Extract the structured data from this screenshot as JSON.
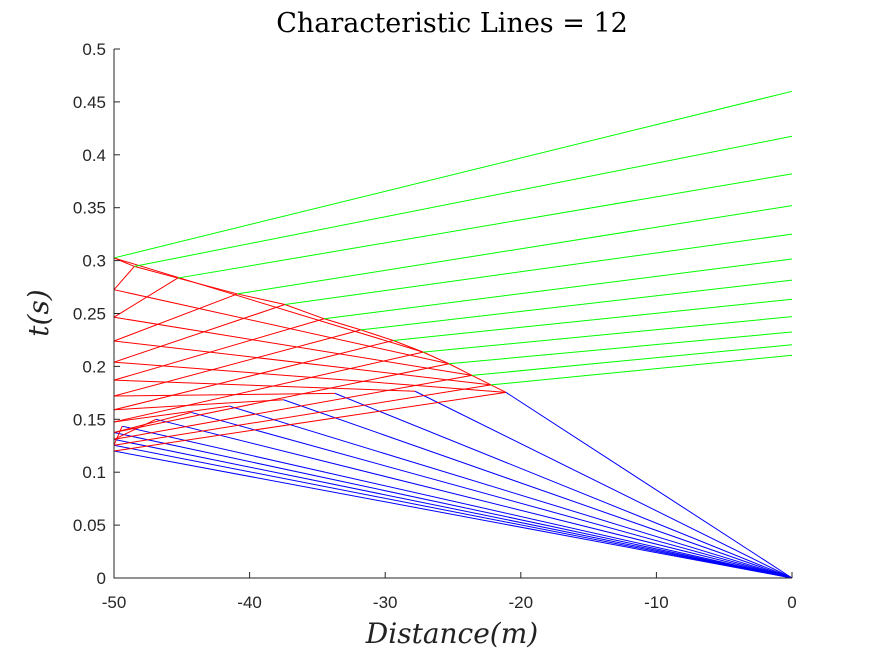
{
  "chart_data": {
    "type": "line",
    "title": "Characteristic Lines = 12",
    "xlabel": "Distance(m)",
    "ylabel": "t(s)",
    "xlim": [
      -50,
      0
    ],
    "ylim": [
      0,
      0.5
    ],
    "xticks": [
      -50,
      -40,
      -30,
      -20,
      -10,
      0
    ],
    "yticks": [
      0,
      0.05,
      0.1,
      0.15,
      0.2,
      0.25,
      0.3,
      0.35,
      0.4,
      0.45,
      0.5
    ],
    "xtick_labels": [
      "-50",
      "-40",
      "-30",
      "-20",
      "-10",
      "0"
    ],
    "ytick_labels": [
      "0",
      "0.05",
      "0.1",
      "0.15",
      "0.2",
      "0.25",
      "0.3",
      "0.35",
      "0.4",
      "0.45",
      "0.5"
    ],
    "grid": false,
    "colors": {
      "blue": "#0000ff",
      "red": "#ff0000",
      "green": "#00ff00",
      "axis": "#262626"
    },
    "series": [
      {
        "color": "blue",
        "points": [
          [
            0,
            0
          ],
          [
            -50,
            0.12
          ]
        ]
      },
      {
        "color": "blue",
        "points": [
          [
            0,
            0
          ],
          [
            -50,
            0.1255
          ]
        ]
      },
      {
        "color": "blue",
        "points": [
          [
            0,
            0
          ],
          [
            -50,
            0.131
          ]
        ]
      },
      {
        "color": "blue",
        "points": [
          [
            0,
            0
          ],
          [
            -50,
            0.1375
          ]
        ]
      },
      {
        "color": "blue",
        "points": [
          [
            0,
            0
          ],
          [
            -49.4,
            0.1435
          ]
        ]
      },
      {
        "color": "blue",
        "points": [
          [
            0,
            0
          ],
          [
            -46.9,
            0.15
          ]
        ]
      },
      {
        "color": "blue",
        "points": [
          [
            0,
            0
          ],
          [
            -44.3,
            0.1565
          ]
        ]
      },
      {
        "color": "blue",
        "points": [
          [
            0,
            0
          ],
          [
            -41.5,
            0.1625
          ]
        ]
      },
      {
        "color": "blue",
        "points": [
          [
            0,
            0
          ],
          [
            -37.5,
            0.1685
          ]
        ]
      },
      {
        "color": "blue",
        "points": [
          [
            0,
            0
          ],
          [
            -33.7,
            0.1745
          ]
        ]
      },
      {
        "color": "blue",
        "points": [
          [
            0,
            0
          ],
          [
            -27.8,
            0.1765
          ]
        ]
      },
      {
        "color": "blue",
        "points": [
          [
            0,
            0
          ],
          [
            -21.1,
            0.1755
          ]
        ]
      },
      {
        "color": "red",
        "points": [
          [
            -50,
            0.12
          ],
          [
            -21.1,
            0.1755
          ]
        ]
      },
      {
        "color": "red",
        "points": [
          [
            -50,
            0.1255
          ],
          [
            -22.2,
            0.1825
          ]
        ]
      },
      {
        "color": "red",
        "points": [
          [
            -50,
            0.131
          ],
          [
            -23.6,
            0.1915
          ]
        ]
      },
      {
        "color": "red",
        "points": [
          [
            -50,
            0.1375
          ],
          [
            -25.3,
            0.2025
          ]
        ]
      },
      {
        "color": "red",
        "points": [
          [
            -50,
            0.1475
          ],
          [
            -27.2,
            0.2135
          ]
        ]
      },
      {
        "color": "red",
        "points": [
          [
            -50,
            0.159
          ],
          [
            -29.4,
            0.2245
          ]
        ]
      },
      {
        "color": "red",
        "points": [
          [
            -50,
            0.172
          ],
          [
            -31.8,
            0.2345
          ]
        ]
      },
      {
        "color": "red",
        "points": [
          [
            -50,
            0.187
          ],
          [
            -34.5,
            0.245
          ]
        ]
      },
      {
        "color": "red",
        "points": [
          [
            -50,
            0.204
          ],
          [
            -37.4,
            0.2585
          ]
        ]
      },
      {
        "color": "red",
        "points": [
          [
            -50,
            0.224
          ],
          [
            -40.9,
            0.2685
          ]
        ]
      },
      {
        "color": "red",
        "points": [
          [
            -50,
            0.2465
          ],
          [
            -45.3,
            0.2835
          ]
        ]
      },
      {
        "color": "red",
        "points": [
          [
            -50,
            0.2725
          ],
          [
            -48.5,
            0.2945
          ]
        ]
      },
      {
        "color": "red",
        "points": [
          [
            -50,
            0.1255
          ],
          [
            -49.4,
            0.1435
          ]
        ]
      },
      {
        "color": "red",
        "points": [
          [
            -50,
            0.131
          ],
          [
            -46.9,
            0.15
          ]
        ]
      },
      {
        "color": "red",
        "points": [
          [
            -50,
            0.1375
          ],
          [
            -44.3,
            0.1565
          ]
        ]
      },
      {
        "color": "red",
        "points": [
          [
            -50,
            0.1475
          ],
          [
            -41.5,
            0.1625
          ]
        ]
      },
      {
        "color": "red",
        "points": [
          [
            -50,
            0.159
          ],
          [
            -37.5,
            0.1685
          ]
        ]
      },
      {
        "color": "red",
        "points": [
          [
            -50,
            0.172
          ],
          [
            -33.7,
            0.1745
          ]
        ]
      },
      {
        "color": "red",
        "points": [
          [
            -50,
            0.187
          ],
          [
            -27.8,
            0.1765
          ]
        ]
      },
      {
        "color": "red",
        "points": [
          [
            -50,
            0.204
          ],
          [
            -21.1,
            0.1755
          ]
        ]
      },
      {
        "color": "red",
        "points": [
          [
            -50,
            0.224
          ],
          [
            -22.2,
            0.1825
          ]
        ]
      },
      {
        "color": "red",
        "points": [
          [
            -50,
            0.2465
          ],
          [
            -23.6,
            0.1915
          ]
        ]
      },
      {
        "color": "red",
        "points": [
          [
            -50,
            0.2725
          ],
          [
            -25.3,
            0.2025
          ]
        ]
      },
      {
        "color": "red",
        "points": [
          [
            -50,
            0.3025
          ],
          [
            -27.2,
            0.2135
          ]
        ]
      },
      {
        "color": "red",
        "points": [
          [
            -50,
            0.3025
          ],
          [
            -48.5,
            0.2945
          ]
        ]
      },
      {
        "color": "red",
        "points": [
          [
            -48.5,
            0.2945
          ],
          [
            -45.3,
            0.2835
          ]
        ]
      },
      {
        "color": "red",
        "points": [
          [
            -45.3,
            0.2835
          ],
          [
            -40.9,
            0.2685
          ]
        ]
      },
      {
        "color": "red",
        "points": [
          [
            -40.9,
            0.2685
          ],
          [
            -37.4,
            0.2585
          ]
        ]
      },
      {
        "color": "red",
        "points": [
          [
            -37.4,
            0.2585
          ],
          [
            -34.5,
            0.245
          ]
        ]
      },
      {
        "color": "red",
        "points": [
          [
            -34.5,
            0.245
          ],
          [
            -31.8,
            0.2345
          ]
        ]
      },
      {
        "color": "red",
        "points": [
          [
            -31.8,
            0.2345
          ],
          [
            -29.4,
            0.2245
          ]
        ]
      },
      {
        "color": "red",
        "points": [
          [
            -29.4,
            0.2245
          ],
          [
            -27.2,
            0.2135
          ]
        ]
      },
      {
        "color": "red",
        "points": [
          [
            -27.2,
            0.2135
          ],
          [
            -25.3,
            0.2025
          ]
        ]
      },
      {
        "color": "red",
        "points": [
          [
            -25.3,
            0.2025
          ],
          [
            -23.6,
            0.1915
          ]
        ]
      },
      {
        "color": "red",
        "points": [
          [
            -23.6,
            0.1915
          ],
          [
            -22.2,
            0.1825
          ]
        ]
      },
      {
        "color": "red",
        "points": [
          [
            -22.2,
            0.1825
          ],
          [
            -21.1,
            0.1755
          ]
        ]
      },
      {
        "color": "green",
        "points": [
          [
            -50,
            0.3025
          ],
          [
            0,
            0.46
          ]
        ]
      },
      {
        "color": "green",
        "points": [
          [
            -48.5,
            0.2945
          ],
          [
            0,
            0.4175
          ]
        ]
      },
      {
        "color": "green",
        "points": [
          [
            -45.3,
            0.2835
          ],
          [
            0,
            0.382
          ]
        ]
      },
      {
        "color": "green",
        "points": [
          [
            -40.9,
            0.2685
          ],
          [
            0,
            0.352
          ]
        ]
      },
      {
        "color": "green",
        "points": [
          [
            -37.4,
            0.2585
          ],
          [
            0,
            0.325
          ]
        ]
      },
      {
        "color": "green",
        "points": [
          [
            -34.5,
            0.245
          ],
          [
            0,
            0.3015
          ]
        ]
      },
      {
        "color": "green",
        "points": [
          [
            -31.8,
            0.2345
          ],
          [
            0,
            0.2815
          ]
        ]
      },
      {
        "color": "green",
        "points": [
          [
            -29.4,
            0.2245
          ],
          [
            0,
            0.2635
          ]
        ]
      },
      {
        "color": "green",
        "points": [
          [
            -27.2,
            0.2135
          ],
          [
            0,
            0.247
          ]
        ]
      },
      {
        "color": "green",
        "points": [
          [
            -25.3,
            0.2025
          ],
          [
            0,
            0.2325
          ]
        ]
      },
      {
        "color": "green",
        "points": [
          [
            -23.6,
            0.1915
          ],
          [
            0,
            0.2205
          ]
        ]
      },
      {
        "color": "green",
        "points": [
          [
            -22.2,
            0.1825
          ],
          [
            0,
            0.2105
          ]
        ]
      }
    ]
  }
}
